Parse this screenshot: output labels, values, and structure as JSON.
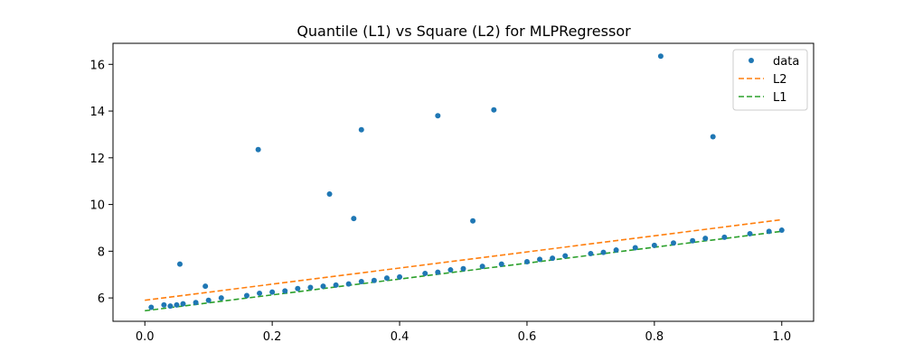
{
  "chart_data": {
    "type": "scatter",
    "title": "Quantile (L1) vs Square (L2) for MLPRegressor",
    "xlabel": "",
    "ylabel": "",
    "xlim": [
      -0.05,
      1.05
    ],
    "ylim": [
      5.0,
      16.9
    ],
    "xticks": [
      0.0,
      0.2,
      0.4,
      0.6,
      0.8,
      1.0
    ],
    "xtick_labels": [
      "0.0",
      "0.2",
      "0.4",
      "0.6",
      "0.8",
      "1.0"
    ],
    "yticks": [
      6,
      8,
      10,
      12,
      14,
      16
    ],
    "ytick_labels": [
      "6",
      "8",
      "10",
      "12",
      "14",
      "16"
    ],
    "grid": false,
    "legend_position": "top-right",
    "series": [
      {
        "name": "data",
        "kind": "points",
        "color": "#1f77b4",
        "x": [
          0.01,
          0.03,
          0.04,
          0.05,
          0.06,
          0.08,
          0.1,
          0.12,
          0.16,
          0.18,
          0.2,
          0.22,
          0.24,
          0.26,
          0.28,
          0.3,
          0.32,
          0.34,
          0.36,
          0.38,
          0.4,
          0.44,
          0.46,
          0.48,
          0.5,
          0.53,
          0.56,
          0.6,
          0.62,
          0.64,
          0.66,
          0.7,
          0.72,
          0.74,
          0.77,
          0.8,
          0.83,
          0.86,
          0.88,
          0.91,
          0.95,
          0.98,
          1.0,
          0.055,
          0.095,
          0.178,
          0.29,
          0.328,
          0.34,
          0.46,
          0.515,
          0.548,
          0.81,
          0.892
        ],
        "y": [
          5.6,
          5.7,
          5.65,
          5.7,
          5.75,
          5.8,
          5.9,
          6.0,
          6.1,
          6.2,
          6.25,
          6.3,
          6.4,
          6.45,
          6.5,
          6.55,
          6.6,
          6.7,
          6.75,
          6.85,
          6.9,
          7.05,
          7.1,
          7.2,
          7.25,
          7.35,
          7.45,
          7.55,
          7.65,
          7.7,
          7.8,
          7.9,
          7.95,
          8.05,
          8.15,
          8.25,
          8.35,
          8.45,
          8.55,
          8.6,
          8.75,
          8.85,
          8.9,
          7.45,
          6.5,
          12.35,
          10.45,
          9.4,
          13.2,
          13.8,
          9.3,
          14.05,
          16.35,
          12.9
        ],
        "legend": "data"
      },
      {
        "name": "L2",
        "kind": "dashed-line",
        "color": "#ff7f0e",
        "x": [
          0.0,
          1.0
        ],
        "y": [
          5.9,
          9.35
        ],
        "legend": "L2"
      },
      {
        "name": "L1",
        "kind": "dashed-line",
        "color": "#2ca02c",
        "x": [
          0.0,
          1.0
        ],
        "y": [
          5.45,
          8.85
        ],
        "legend": "L1"
      }
    ]
  }
}
